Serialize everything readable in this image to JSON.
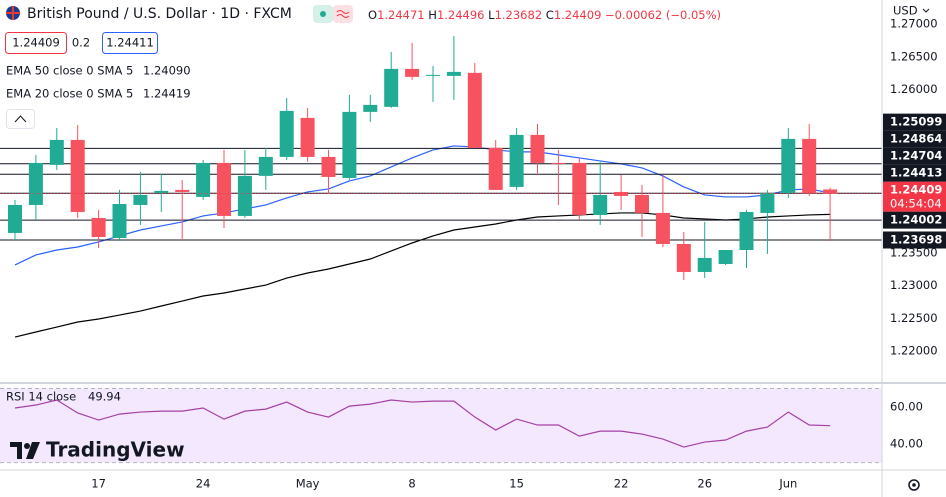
{
  "header": {
    "ohlc_prefixes": [
      "O",
      "H",
      "L",
      "C"
    ],
    "change": "−0.00062 (−0.05%)",
    "bid": "1.24409",
    "spread": "0.2",
    "ask": "1.24411",
    "currency": "USD",
    "brand": "TradingView"
  },
  "chart_data": [
    {
      "type": "candlestick",
      "title": "British Pound / U.S. Dollar · 1D · FXCM",
      "categories": [
        null,
        null,
        null,
        null,
        "17",
        null,
        null,
        null,
        null,
        "24",
        null,
        null,
        null,
        null,
        "May",
        null,
        null,
        null,
        null,
        "8",
        null,
        null,
        null,
        null,
        "15",
        null,
        null,
        null,
        null,
        "22",
        null,
        null,
        null,
        "26",
        null,
        null,
        null,
        "Jun",
        null,
        null
      ],
      "open": [
        1.23806,
        1.24234,
        1.24847,
        1.25229,
        1.24035,
        1.23729,
        1.24234,
        1.24418,
        1.24464,
        1.24357,
        1.24877,
        1.24066,
        1.24679,
        1.24969,
        1.25566,
        1.24969,
        1.24647,
        1.25658,
        1.25735,
        1.26316,
        1.26209,
        1.26209,
        1.26255,
        1.25107,
        1.2451,
        1.25306,
        1.24877,
        1.24877,
        1.24081,
        1.24433,
        1.24387,
        1.24112,
        1.23637,
        1.23209,
        1.23331,
        1.23545,
        1.24112,
        1.24418,
        1.25245,
        1.24471
      ],
      "high": [
        1.24311,
        1.25,
        1.25413,
        1.25459,
        1.24158,
        1.24464,
        1.2474,
        1.24709,
        1.24617,
        1.24923,
        1.25076,
        1.25076,
        1.25107,
        1.25872,
        1.25719,
        1.25076,
        1.25918,
        1.25918,
        1.26577,
        1.26714,
        1.26362,
        1.26821,
        1.26408,
        1.25229,
        1.25413,
        1.25474,
        1.25076,
        1.24954,
        1.24893,
        1.24694,
        1.24541,
        1.24694,
        1.23821,
        1.23974,
        1.23545,
        1.24158,
        1.24464,
        1.25413,
        1.25474,
        1.24496
      ],
      "low": [
        1.23698,
        1.24004,
        1.2477,
        1.24035,
        1.23576,
        1.23683,
        1.23928,
        1.24127,
        1.23698,
        1.24311,
        1.23882,
        1.24035,
        1.24464,
        1.24923,
        1.24893,
        1.24403,
        1.24617,
        1.25505,
        1.25719,
        1.26148,
        1.25811,
        1.25842,
        1.25107,
        1.24464,
        1.24464,
        1.24694,
        1.24234,
        1.24004,
        1.23928,
        1.24158,
        1.23744,
        1.23591,
        1.23086,
        1.23117,
        1.23316,
        1.2327,
        1.23484,
        1.24341,
        1.24372,
        1.23682
      ],
      "close": [
        1.24234,
        1.24877,
        1.25229,
        1.24127,
        1.23744,
        1.24249,
        1.24387,
        1.24449,
        1.24433,
        1.24877,
        1.24066,
        1.24679,
        1.24969,
        1.25673,
        1.24969,
        1.24663,
        1.25658,
        1.25765,
        1.26316,
        1.26194,
        1.26224,
        1.2627,
        1.25107,
        1.24464,
        1.25306,
        1.24877,
        1.24862,
        1.24081,
        1.24387,
        1.24372,
        1.24112,
        1.23637,
        1.23209,
        1.23423,
        1.23545,
        1.24127,
        1.24418,
        1.25245,
        1.24413,
        1.24409
      ],
      "up_color": "#22ab94",
      "down_color": "#f7525f",
      "series": [
        {
          "name": "EMA 50 close 0 SMA 5",
          "legend_value": "1.24090",
          "color": "#000000",
          "values": [
            1.22213,
            1.2229,
            1.22366,
            1.22443,
            1.22489,
            1.2255,
            1.22611,
            1.22688,
            1.22764,
            1.22841,
            1.22887,
            1.22948,
            1.23009,
            1.23116,
            1.23193,
            1.23254,
            1.23331,
            1.23407,
            1.2353,
            1.23652,
            1.2376,
            1.23851,
            1.23897,
            1.23943,
            1.24004,
            1.2405,
            1.24066,
            1.24081,
            1.24097,
            1.24112,
            1.24112,
            1.24081,
            1.24035,
            1.2402,
            1.24004,
            1.2402,
            1.2405,
            1.24066,
            1.24081,
            1.2409
          ]
        },
        {
          "name": "EMA 20 close 0 SMA 5",
          "legend_value": "1.24419",
          "color": "#2962ff",
          "values": [
            1.23316,
            1.23469,
            1.23545,
            1.23591,
            1.23668,
            1.2376,
            1.23851,
            1.23913,
            1.23974,
            1.24066,
            1.24112,
            1.24173,
            1.24234,
            1.24341,
            1.24433,
            1.24479,
            1.24602,
            1.24678,
            1.24816,
            1.24954,
            1.25076,
            1.25137,
            1.25122,
            1.25076,
            1.25046,
            1.25046,
            1.25,
            1.24954,
            1.24908,
            1.24862,
            1.24801,
            1.24678,
            1.2451,
            1.24387,
            1.24357,
            1.24357,
            1.24387,
            1.24464,
            1.24479,
            1.24419
          ]
        }
      ],
      "price_lines": [
        1.25099,
        1.24864,
        1.24704,
        1.24413,
        1.24002,
        1.23698
      ],
      "last_price": 1.24409,
      "countdown": "04:54:04",
      "last_color": "#f23645",
      "ylim": [
        1.2151,
        1.2737
      ],
      "yticks": [
        {
          "value": 1.27,
          "label": "1.27000"
        },
        {
          "value": 1.265,
          "label": "1.26500"
        },
        {
          "value": 1.26,
          "label": "1.26000"
        },
        {
          "value": 1.235,
          "label": "1.23500"
        },
        {
          "value": 1.23,
          "label": "1.23000"
        },
        {
          "value": 1.225,
          "label": "1.22500"
        },
        {
          "value": 1.22,
          "label": "1.22000"
        }
      ],
      "grid": false
    },
    {
      "type": "line",
      "title": "RSI 14 close",
      "value_label": "49.94",
      "color": "#a63fa6",
      "values": [
        59.5,
        61.1,
        63.8,
        56.8,
        53.0,
        56.2,
        57.3,
        57.8,
        57.8,
        59.5,
        53.5,
        57.8,
        58.9,
        62.7,
        57.3,
        54.6,
        60.5,
        61.6,
        63.8,
        62.7,
        63.2,
        63.2,
        54.6,
        47.6,
        53.5,
        50.3,
        50.3,
        44.3,
        47.0,
        47.0,
        45.4,
        42.7,
        38.4,
        41.1,
        42.2,
        47.0,
        49.2,
        57.3,
        50.3,
        49.94
      ],
      "band": [
        30,
        70
      ],
      "band_color": "#f3e8fd",
      "ylim": [
        26,
        73
      ],
      "yticks": [
        {
          "value": 60,
          "label": "60.00"
        },
        {
          "value": 40,
          "label": "40.00"
        }
      ],
      "grid": false
    }
  ]
}
